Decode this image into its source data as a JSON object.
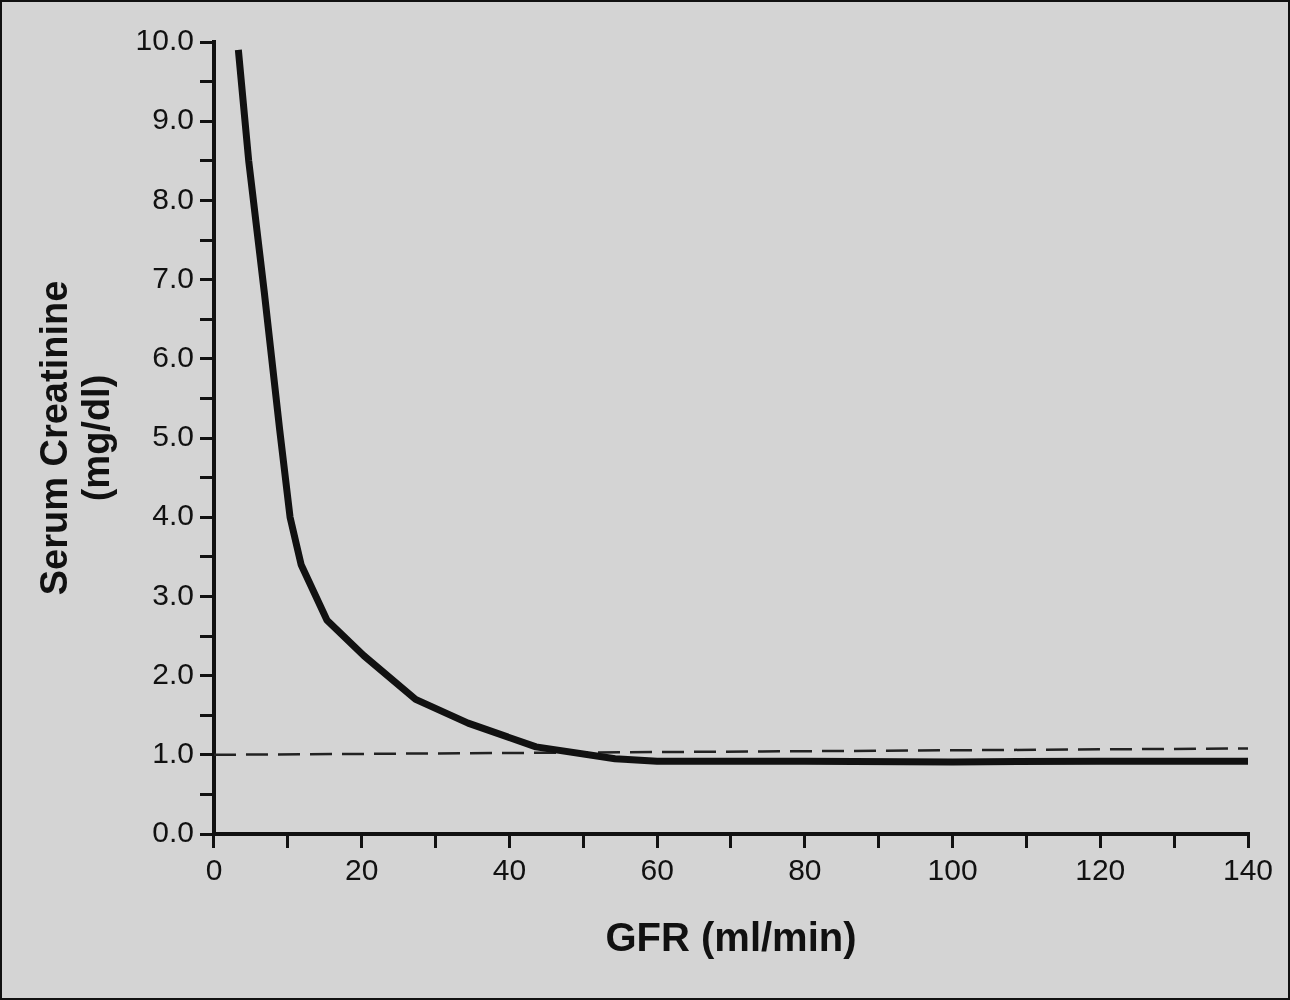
{
  "chart_data": {
    "type": "line",
    "xlabel": "GFR (ml/min)",
    "ylabel": "Serum Creatinine\n(mg/dl)",
    "xlim": [
      0,
      140
    ],
    "ylim": [
      0,
      10
    ],
    "xticks": [
      0,
      {
        "value": 10,
        "label": null
      },
      20,
      {
        "value": 30,
        "label": null
      },
      40,
      {
        "value": 50,
        "label": null
      },
      60,
      {
        "value": 70,
        "label": null
      },
      80,
      {
        "value": 90,
        "label": null
      },
      100,
      {
        "value": 110,
        "label": null
      },
      120,
      {
        "value": 130,
        "label": null
      },
      140
    ],
    "yticks": [
      {
        "value": 0,
        "label": "0.0"
      },
      {
        "value": 0.5,
        "label": null
      },
      {
        "value": 1,
        "label": "1.0"
      },
      {
        "value": 1.5,
        "label": null
      },
      {
        "value": 2,
        "label": "2.0"
      },
      {
        "value": 2.5,
        "label": null
      },
      {
        "value": 3,
        "label": "3.0"
      },
      {
        "value": 3.5,
        "label": null
      },
      {
        "value": 4,
        "label": "4.0"
      },
      {
        "value": 4.5,
        "label": null
      },
      {
        "value": 5,
        "label": "5.0"
      },
      {
        "value": 5.5,
        "label": null
      },
      {
        "value": 6,
        "label": "6.0"
      },
      {
        "value": 6.5,
        "label": null
      },
      {
        "value": 7,
        "label": "7.0"
      },
      {
        "value": 7.5,
        "label": null
      },
      {
        "value": 8,
        "label": "8.0"
      },
      {
        "value": 8.5,
        "label": null
      },
      {
        "value": 9,
        "label": "9.0"
      },
      {
        "value": 9.5,
        "label": null
      },
      {
        "value": 10,
        "label": "10.0"
      }
    ],
    "grid": false,
    "legend": false,
    "marker": "none",
    "series": [
      {
        "color": "#111111",
        "line_style": "solid",
        "x": [
          3.3,
          4.7,
          6.8,
          8.9,
          10.3,
          11.8,
          15.3,
          20.3,
          27.3,
          34.4,
          43.6,
          54.3,
          60,
          80,
          100,
          120,
          140
        ],
        "values": [
          9.9,
          8.5,
          6.85,
          5.1,
          4.0,
          3.4,
          2.7,
          2.25,
          1.7,
          1.4,
          1.1,
          0.95,
          0.92,
          0.92,
          0.91,
          0.92,
          0.92
        ]
      },
      {
        "color": "#222222",
        "line_style": "dashed",
        "x": [
          0,
          140
        ],
        "values": [
          1.0,
          1.08
        ]
      }
    ]
  }
}
